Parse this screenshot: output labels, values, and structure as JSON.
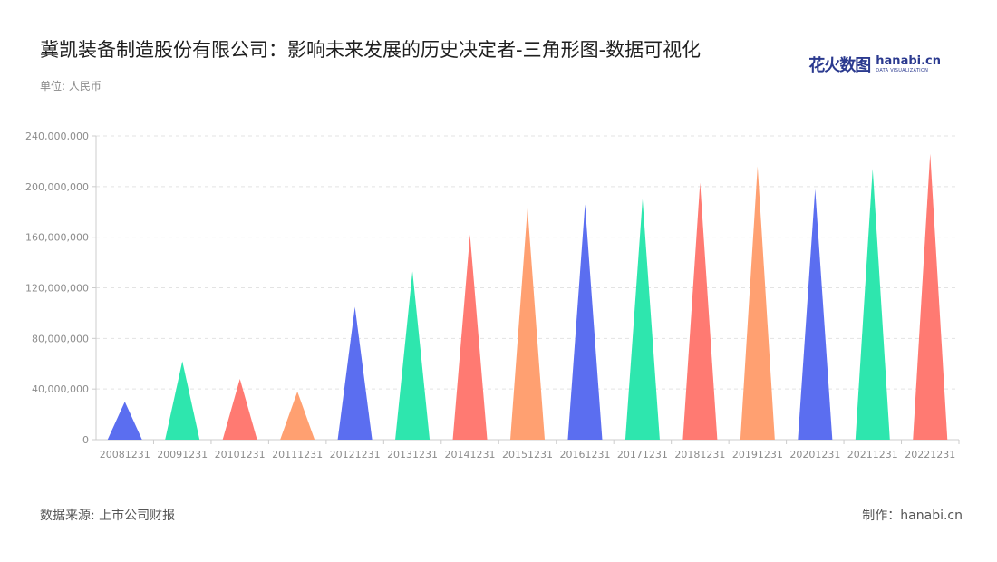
{
  "header": {
    "title": "冀凯装备制造股份有限公司：影响未来发展的历史决定者-三角形图-数据可视化",
    "unit": "单位: 人民币"
  },
  "logo": {
    "cn": "花火数图",
    "en": "hanabi.cn",
    "en_sub": "DATA VISUALIZATION"
  },
  "footer": {
    "source": "数据来源: 上市公司财报",
    "maker": "制作：hanabi.cn"
  },
  "chart_data": {
    "type": "bar",
    "mark": "triangle",
    "title": "冀凯装备制造股份有限公司：影响未来发展的历史决定者-三角形图-数据可视化",
    "ylabel": "单位: 人民币",
    "xlabel": "",
    "ylim": [
      0,
      240000000
    ],
    "yticks": [
      0,
      40000000,
      80000000,
      120000000,
      160000000,
      200000000,
      240000000
    ],
    "ytick_labels": [
      "0",
      "40,000,000",
      "80,000,000",
      "120,000,000",
      "160,000,000",
      "200,000,000",
      "240,000,000"
    ],
    "grid": true,
    "categories": [
      "20081231",
      "20091231",
      "20101231",
      "20111231",
      "20121231",
      "20131231",
      "20141231",
      "20151231",
      "20161231",
      "20171231",
      "20181231",
      "20191231",
      "20201231",
      "20211231",
      "20221231"
    ],
    "values": [
      30000000,
      62000000,
      48000000,
      38000000,
      105000000,
      133000000,
      162000000,
      183000000,
      186000000,
      190000000,
      203000000,
      216000000,
      198000000,
      214000000,
      226000000
    ],
    "palette": [
      "#5b6ef0",
      "#2ee6ae",
      "#ff7a72",
      "#ffa071"
    ]
  }
}
